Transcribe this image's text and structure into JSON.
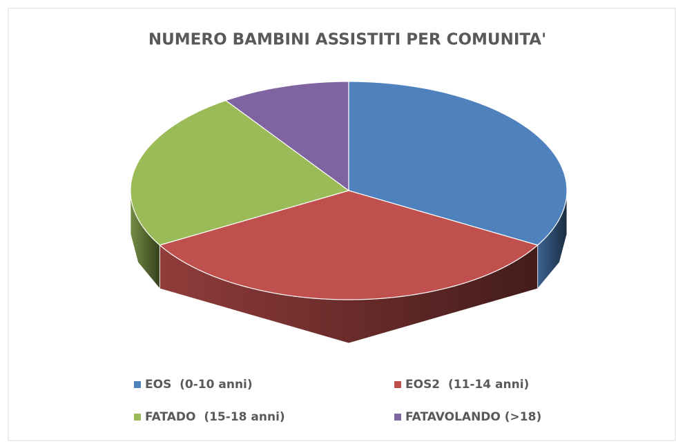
{
  "chart_data": {
    "type": "pie3d",
    "title": "NUMERO BAMBINI ASSISTITI PER COMUNITA'",
    "categories": [
      "EOS  (0-10 anni)",
      "EOS2  (11-14 anni)",
      "FATADO  (15-18 anni)",
      "FATAVOLANDO (>18)"
    ],
    "values": [
      7,
      7,
      5,
      2
    ],
    "colors": [
      "#4f81bd",
      "#c0504d",
      "#9bbb59",
      "#8064a2"
    ],
    "legend": "bottom"
  }
}
